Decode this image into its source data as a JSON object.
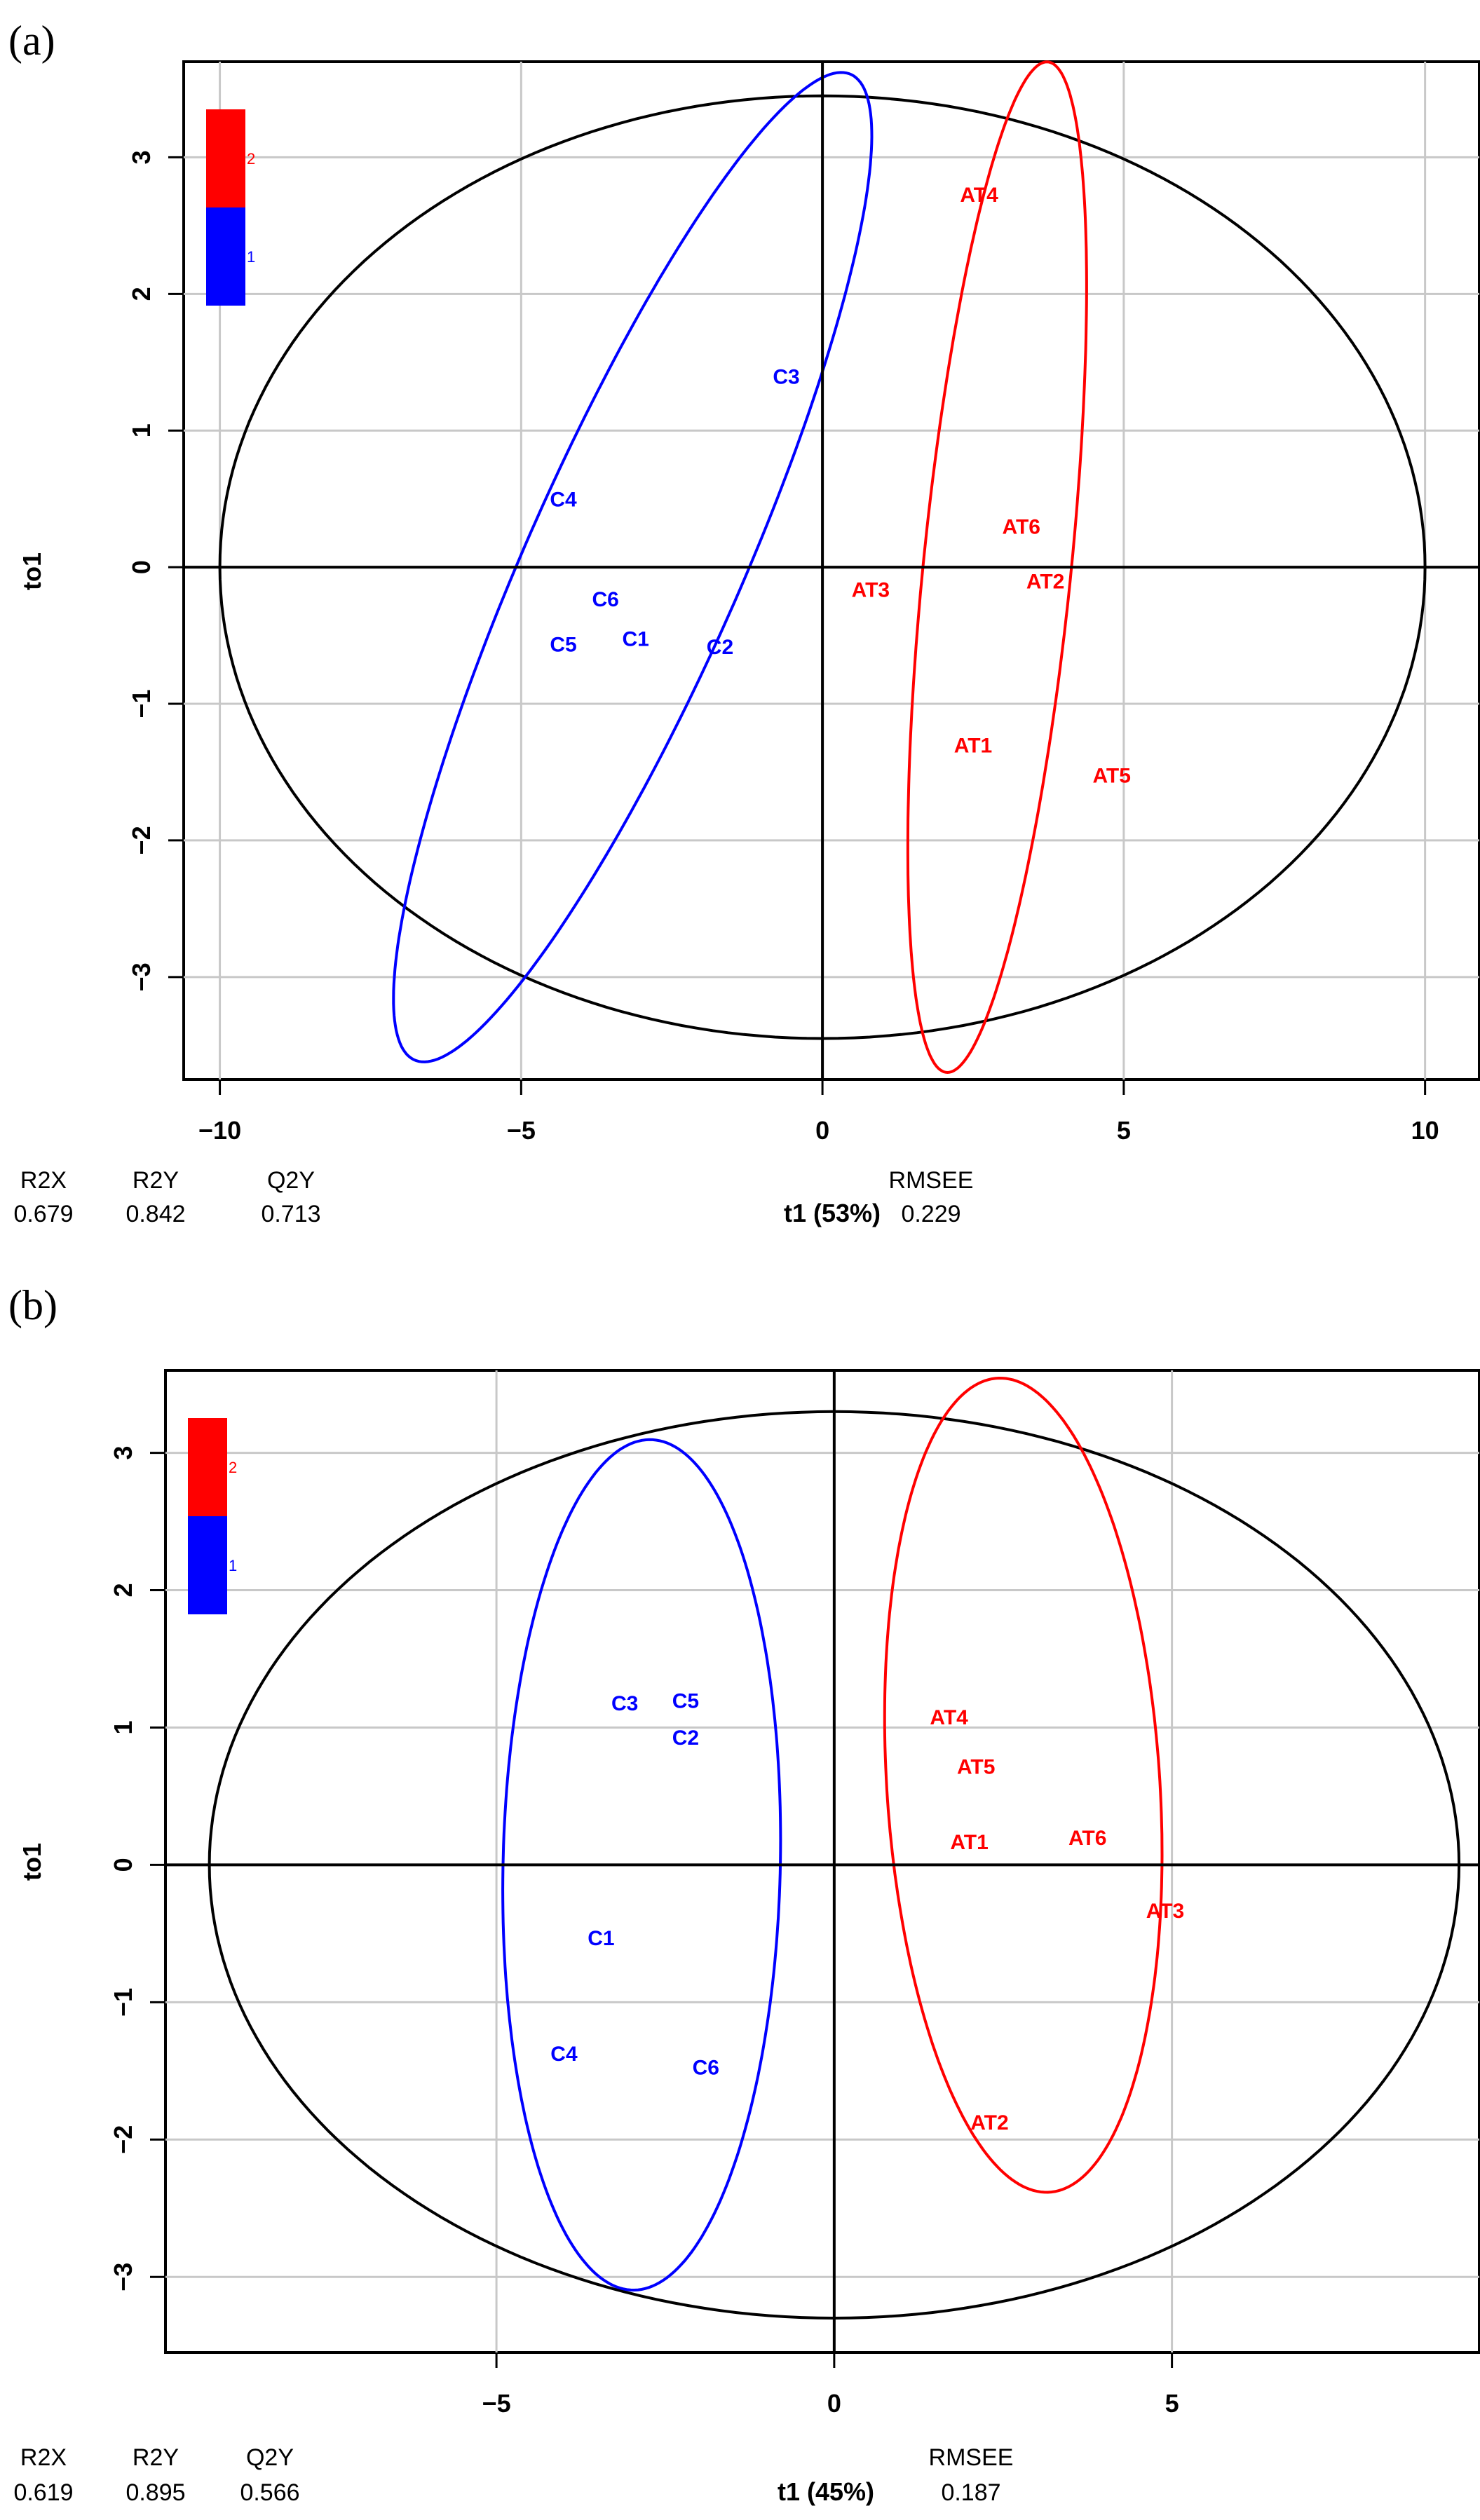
{
  "colors": {
    "group1": "#0000ff",
    "group2": "#ff0000",
    "axis": "#000000",
    "grid": "#c8c8c8"
  },
  "chart_data": [
    {
      "type": "scatter",
      "panel_label": "(a)",
      "xlabel": "t1 (53%)",
      "ylabel": "to1",
      "xlim": [
        -10.6,
        10.9
      ],
      "ylim": [
        -3.75,
        3.7
      ],
      "xticks": [
        -10,
        -5,
        0,
        5,
        10
      ],
      "xtick_labels": [
        "−10",
        "−5",
        "0",
        "5",
        "10"
      ],
      "yticks": [
        -3,
        -2,
        -1,
        0,
        1,
        2,
        3
      ],
      "ytick_labels": [
        "−3",
        "−2",
        "−1",
        "0",
        "1",
        "2",
        "3"
      ],
      "legend": {
        "items": [
          {
            "label": "2",
            "color": "#ff0000"
          },
          {
            "label": "1",
            "color": "#0000ff"
          }
        ],
        "position": "top-left"
      },
      "stats": [
        {
          "name": "R2X",
          "value": "0.679"
        },
        {
          "name": "R2Y",
          "value": "0.842"
        },
        {
          "name": "Q2Y",
          "value": "0.713"
        },
        {
          "name": "RMSEE",
          "value": "0.229"
        }
      ],
      "series": [
        {
          "name": "1",
          "color": "#0000ff",
          "points": [
            {
              "label": "C1",
              "x": -3.1,
              "y": -0.52
            },
            {
              "label": "C2",
              "x": -1.7,
              "y": -0.58
            },
            {
              "label": "C3",
              "x": -0.6,
              "y": 1.4
            },
            {
              "label": "C4",
              "x": -4.3,
              "y": 0.5
            },
            {
              "label": "C5",
              "x": -4.3,
              "y": -0.56
            },
            {
              "label": "C6",
              "x": -3.6,
              "y": -0.23
            }
          ]
        },
        {
          "name": "2",
          "color": "#ff0000",
          "points": [
            {
              "label": "AT1",
              "x": 2.5,
              "y": -1.3
            },
            {
              "label": "AT2",
              "x": 3.7,
              "y": -0.1
            },
            {
              "label": "AT3",
              "x": 0.8,
              "y": -0.16
            },
            {
              "label": "AT4",
              "x": 2.6,
              "y": 2.73
            },
            {
              "label": "AT5",
              "x": 4.8,
              "y": -1.52
            },
            {
              "label": "AT6",
              "x": 3.3,
              "y": 0.3
            }
          ]
        }
      ],
      "ellipses": [
        {
          "group": "all",
          "color": "#000000",
          "cx": 0,
          "cy": 0,
          "rx": 10,
          "ry": 3.45,
          "angle": 0
        },
        {
          "group": "1",
          "color": "#0000ff",
          "cx": -3.15,
          "cy": 0.0,
          "rx": 5.2,
          "ry": 1.35,
          "angle": 42
        },
        {
          "group": "2",
          "color": "#ff0000",
          "cx": 2.9,
          "cy": 0.0,
          "rx": 3.8,
          "ry": 1.2,
          "angle": 76
        }
      ]
    },
    {
      "type": "scatter",
      "panel_label": "(b)",
      "xlabel": "t1 (45%)",
      "ylabel": "to1",
      "xlim": [
        -9.9,
        9.55
      ],
      "ylim": [
        -3.55,
        3.6
      ],
      "xticks": [
        -5,
        0,
        5
      ],
      "xtick_labels": [
        "−5",
        "0",
        "5"
      ],
      "yticks": [
        -3,
        -2,
        -1,
        0,
        1,
        2,
        3
      ],
      "ytick_labels": [
        "−3",
        "−2",
        "−1",
        "0",
        "1",
        "2",
        "3"
      ],
      "legend": {
        "items": [
          {
            "label": "2",
            "color": "#ff0000"
          },
          {
            "label": "1",
            "color": "#0000ff"
          }
        ],
        "position": "top-left"
      },
      "stats": [
        {
          "name": "R2X",
          "value": "0.619"
        },
        {
          "name": "R2Y",
          "value": "0.895"
        },
        {
          "name": "Q2Y",
          "value": "0.566"
        },
        {
          "name": "RMSEE",
          "value": "0.187"
        }
      ],
      "series": [
        {
          "name": "1",
          "color": "#0000ff",
          "points": [
            {
              "label": "C1",
              "x": -3.45,
              "y": -0.53
            },
            {
              "label": "C2",
              "x": -2.2,
              "y": 0.93
            },
            {
              "label": "C3",
              "x": -3.1,
              "y": 1.18
            },
            {
              "label": "C4",
              "x": -4.0,
              "y": -1.37
            },
            {
              "label": "C5",
              "x": -2.2,
              "y": 1.2
            },
            {
              "label": "C6",
              "x": -1.9,
              "y": -1.47
            }
          ]
        },
        {
          "name": "2",
          "color": "#ff0000",
          "points": [
            {
              "label": "AT1",
              "x": 2.0,
              "y": 0.17
            },
            {
              "label": "AT2",
              "x": 2.3,
              "y": -1.87
            },
            {
              "label": "AT3",
              "x": 4.9,
              "y": -0.33
            },
            {
              "label": "AT4",
              "x": 1.7,
              "y": 1.08
            },
            {
              "label": "AT5",
              "x": 2.1,
              "y": 0.72
            },
            {
              "label": "AT6",
              "x": 3.75,
              "y": 0.2
            }
          ]
        }
      ],
      "ellipses": [
        {
          "group": "all",
          "color": "#000000",
          "cx": 0,
          "cy": 0,
          "rx": 9.25,
          "ry": 3.3,
          "angle": 0
        },
        {
          "group": "1",
          "color": "#0000ff",
          "cx": -2.85,
          "cy": 0.0,
          "rx": 3.1,
          "ry": 2.05,
          "angle": 86
        },
        {
          "group": "2",
          "color": "#ff0000",
          "cx": 2.8,
          "cy": 0.58,
          "rx": 2.0,
          "ry": 3.0,
          "angle": 12
        }
      ]
    }
  ]
}
